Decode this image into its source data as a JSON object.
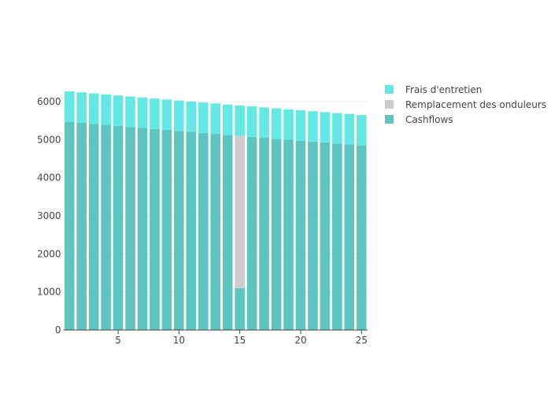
{
  "chart_data": {
    "type": "bar",
    "barmode": "stack",
    "title": "",
    "xlabel": "",
    "ylabel": "",
    "x": [
      1,
      2,
      3,
      4,
      5,
      6,
      7,
      8,
      9,
      10,
      11,
      12,
      13,
      14,
      15,
      16,
      17,
      18,
      19,
      20,
      21,
      22,
      23,
      24,
      25
    ],
    "xticks": [
      5,
      10,
      15,
      20,
      25
    ],
    "yticks": [
      0,
      1000,
      2000,
      3000,
      4000,
      5000,
      6000
    ],
    "xlim": [
      0.5,
      25.5
    ],
    "ylim": [
      0,
      6600
    ],
    "grid": true,
    "legend_position": "top-right",
    "series": [
      {
        "name": "Cashflows",
        "color": "#5ec4c0",
        "values": [
          5470,
          5443,
          5416,
          5389,
          5362,
          5335,
          5308,
          5281,
          5255,
          5229,
          5203,
          5177,
          5151,
          5125,
          1099,
          5074,
          5048,
          5023,
          4998,
          4973,
          4948,
          4924,
          4899,
          4875,
          4850
        ]
      },
      {
        "name": "Remplacement des onduleurs",
        "color": "#cccccc",
        "values": [
          0,
          0,
          0,
          0,
          0,
          0,
          0,
          0,
          0,
          0,
          0,
          0,
          0,
          0,
          4000,
          0,
          0,
          0,
          0,
          0,
          0,
          0,
          0,
          0,
          0
        ]
      },
      {
        "name": "Frais d'entretien",
        "color": "#63e8e4",
        "values": [
          800,
          800,
          800,
          800,
          800,
          800,
          800,
          800,
          800,
          800,
          800,
          800,
          800,
          800,
          800,
          800,
          800,
          800,
          800,
          800,
          800,
          800,
          800,
          800,
          800
        ]
      }
    ],
    "legend_order": [
      "Frais d'entretien",
      "Remplacement des onduleurs",
      "Cashflows"
    ]
  }
}
